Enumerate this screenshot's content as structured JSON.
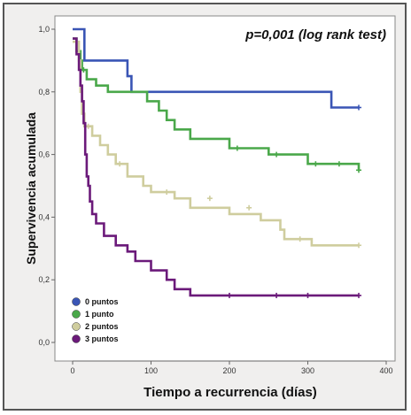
{
  "chart_data": {
    "type": "line",
    "subtype": "kaplan-meier-step",
    "annotation": "p=0,001 (log rank test)",
    "xlabel": "Tiempo a recurrencia (días)",
    "ylabel": "Supervivencia acumulada",
    "xlim": [
      0,
      400
    ],
    "ylim": [
      0,
      1
    ],
    "x_ticks": [
      0,
      100,
      200,
      300,
      400
    ],
    "x_tick_labels": [
      "0",
      "100",
      "200",
      "300",
      "400"
    ],
    "y_ticks": [
      0,
      0.2,
      0.4,
      0.6,
      0.8,
      1.0
    ],
    "y_tick_labels": [
      "0,0",
      "0,2",
      "0,4",
      "0,6",
      "0,8",
      "1,0"
    ],
    "grid": false,
    "legend_position": "bottom-left",
    "series": [
      {
        "name": "0 puntos",
        "color": "#3a55b5",
        "points": [
          [
            0,
            1.0
          ],
          [
            15,
            1.0
          ],
          [
            15,
            0.9
          ],
          [
            70,
            0.9
          ],
          [
            70,
            0.85
          ],
          [
            75,
            0.85
          ],
          [
            75,
            0.8
          ],
          [
            330,
            0.8
          ],
          [
            330,
            0.75
          ],
          [
            365,
            0.75
          ]
        ],
        "censored": [
          [
            365,
            0.75
          ]
        ]
      },
      {
        "name": "1 punto",
        "color": "#4aa84a",
        "points": [
          [
            0,
            0.97
          ],
          [
            5,
            0.97
          ],
          [
            5,
            0.93
          ],
          [
            10,
            0.93
          ],
          [
            10,
            0.9
          ],
          [
            12,
            0.9
          ],
          [
            12,
            0.87
          ],
          [
            18,
            0.87
          ],
          [
            18,
            0.84
          ],
          [
            30,
            0.84
          ],
          [
            30,
            0.82
          ],
          [
            45,
            0.82
          ],
          [
            45,
            0.8
          ],
          [
            95,
            0.8
          ],
          [
            95,
            0.77
          ],
          [
            110,
            0.77
          ],
          [
            110,
            0.74
          ],
          [
            120,
            0.74
          ],
          [
            120,
            0.71
          ],
          [
            130,
            0.71
          ],
          [
            130,
            0.68
          ],
          [
            150,
            0.68
          ],
          [
            150,
            0.65
          ],
          [
            200,
            0.65
          ],
          [
            200,
            0.62
          ],
          [
            250,
            0.62
          ],
          [
            250,
            0.6
          ],
          [
            300,
            0.6
          ],
          [
            300,
            0.57
          ],
          [
            365,
            0.57
          ],
          [
            365,
            0.55
          ]
        ],
        "censored": [
          [
            14,
            0.87
          ],
          [
            210,
            0.62
          ],
          [
            260,
            0.6
          ],
          [
            310,
            0.57
          ],
          [
            340,
            0.57
          ],
          [
            365,
            0.55
          ]
        ]
      },
      {
        "name": "2 puntos",
        "color": "#cfcd9e",
        "points": [
          [
            0,
            0.96
          ],
          [
            8,
            0.96
          ],
          [
            8,
            0.9
          ],
          [
            10,
            0.9
          ],
          [
            10,
            0.8
          ],
          [
            12,
            0.8
          ],
          [
            12,
            0.73
          ],
          [
            15,
            0.73
          ],
          [
            15,
            0.69
          ],
          [
            25,
            0.69
          ],
          [
            25,
            0.66
          ],
          [
            35,
            0.66
          ],
          [
            35,
            0.63
          ],
          [
            45,
            0.63
          ],
          [
            45,
            0.6
          ],
          [
            55,
            0.6
          ],
          [
            55,
            0.57
          ],
          [
            70,
            0.57
          ],
          [
            70,
            0.53
          ],
          [
            90,
            0.53
          ],
          [
            90,
            0.5
          ],
          [
            100,
            0.5
          ],
          [
            100,
            0.48
          ],
          [
            130,
            0.48
          ],
          [
            130,
            0.46
          ],
          [
            150,
            0.46
          ],
          [
            150,
            0.43
          ],
          [
            200,
            0.43
          ],
          [
            200,
            0.41
          ],
          [
            240,
            0.41
          ],
          [
            240,
            0.39
          ],
          [
            265,
            0.39
          ],
          [
            265,
            0.36
          ],
          [
            270,
            0.36
          ],
          [
            270,
            0.33
          ],
          [
            305,
            0.33
          ],
          [
            305,
            0.31
          ],
          [
            365,
            0.31
          ]
        ],
        "censored": [
          [
            20,
            0.69
          ],
          [
            60,
            0.57
          ],
          [
            120,
            0.48
          ],
          [
            175,
            0.46
          ],
          [
            225,
            0.43
          ],
          [
            290,
            0.33
          ],
          [
            365,
            0.31
          ]
        ]
      },
      {
        "name": "3 puntos",
        "color": "#6b1a7a",
        "points": [
          [
            0,
            0.97
          ],
          [
            5,
            0.97
          ],
          [
            5,
            0.92
          ],
          [
            8,
            0.92
          ],
          [
            8,
            0.87
          ],
          [
            10,
            0.87
          ],
          [
            10,
            0.82
          ],
          [
            12,
            0.82
          ],
          [
            12,
            0.77
          ],
          [
            14,
            0.77
          ],
          [
            14,
            0.7
          ],
          [
            16,
            0.7
          ],
          [
            16,
            0.6
          ],
          [
            18,
            0.6
          ],
          [
            18,
            0.53
          ],
          [
            20,
            0.53
          ],
          [
            20,
            0.5
          ],
          [
            22,
            0.5
          ],
          [
            22,
            0.45
          ],
          [
            25,
            0.45
          ],
          [
            25,
            0.41
          ],
          [
            30,
            0.41
          ],
          [
            30,
            0.38
          ],
          [
            40,
            0.38
          ],
          [
            40,
            0.34
          ],
          [
            55,
            0.34
          ],
          [
            55,
            0.31
          ],
          [
            70,
            0.31
          ],
          [
            70,
            0.29
          ],
          [
            80,
            0.29
          ],
          [
            80,
            0.26
          ],
          [
            100,
            0.26
          ],
          [
            100,
            0.23
          ],
          [
            120,
            0.23
          ],
          [
            120,
            0.2
          ],
          [
            130,
            0.2
          ],
          [
            130,
            0.17
          ],
          [
            150,
            0.17
          ],
          [
            150,
            0.15
          ],
          [
            365,
            0.15
          ]
        ],
        "censored": [
          [
            200,
            0.15
          ],
          [
            260,
            0.15
          ],
          [
            300,
            0.15
          ],
          [
            365,
            0.15
          ]
        ]
      }
    ]
  }
}
